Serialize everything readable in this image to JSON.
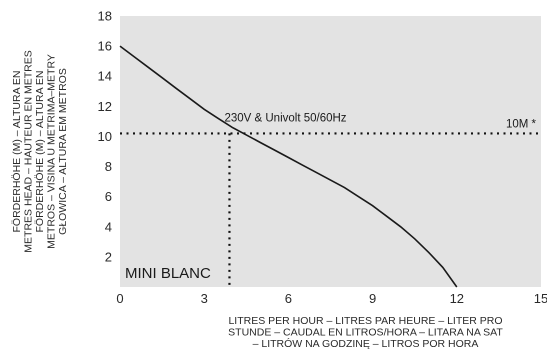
{
  "chart_data": {
    "type": "line",
    "product_label": "MINI BLANC",
    "ylabel_lines": [
      "FÖRDERHÖHE (M) – ALTURA EN",
      "METRES HEAD – HAUTEUR EN METRES",
      "FÖRDERHÖHE (M) – ALTURA EN",
      "METROS – VISINA U METRIMA–METRY",
      "GŁOWICA – ALTURA EM METROS"
    ],
    "xlabel_lines": [
      "LITRES PER HOUR – LITRES PAR HEURE – LITER PRO",
      "STUNDE – CAUDAL EN LITROS/HORA – LITARA NA SAT",
      "– LITRÓW NA GODZINĘ – LITROS POR HORA"
    ],
    "xlim": [
      0,
      15
    ],
    "ylim": [
      0,
      18
    ],
    "x_ticks": [
      0,
      3,
      6,
      9,
      12,
      15
    ],
    "y_ticks": [
      2,
      4,
      6,
      8,
      10,
      12,
      14,
      16,
      18
    ],
    "background_color": "#e3e3e3",
    "line_color": "#1a1a1a",
    "series": [
      {
        "x": [
          0,
          0.5,
          1,
          1.5,
          2,
          2.5,
          3,
          3.5,
          4,
          4.5,
          5,
          5.5,
          6,
          6.5,
          7,
          7.5,
          8,
          8.5,
          9,
          9.5,
          10,
          10.5,
          11,
          11.5,
          12
        ],
        "y": [
          16.0,
          15.3,
          14.6,
          13.9,
          13.2,
          12.5,
          11.8,
          11.2,
          10.6,
          10.1,
          9.6,
          9.1,
          8.6,
          8.1,
          7.6,
          7.1,
          6.6,
          6.0,
          5.4,
          4.7,
          4.0,
          3.2,
          2.3,
          1.3,
          0.0
        ]
      }
    ],
    "operating_point": {
      "x": 3.9,
      "y": 10.2,
      "label": "230V & Univolt 50/60Hz"
    },
    "reference_line": {
      "y": 10.2,
      "label": "10M *"
    }
  }
}
